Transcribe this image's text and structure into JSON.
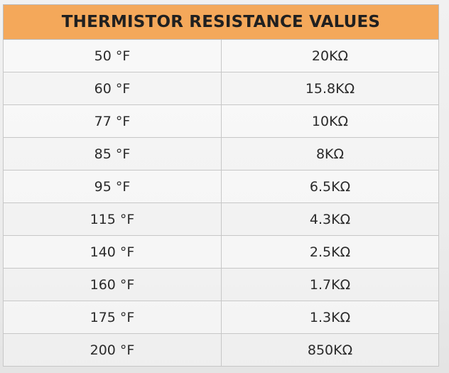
{
  "table": {
    "title": "THERMISTOR RESISTANCE VALUES",
    "rows": [
      {
        "temp": "50 °F",
        "resistance": "20KΩ"
      },
      {
        "temp": "60 °F",
        "resistance": "15.8KΩ"
      },
      {
        "temp": "77 °F",
        "resistance": "10KΩ"
      },
      {
        "temp": "85 °F",
        "resistance": "8KΩ"
      },
      {
        "temp": "95 °F",
        "resistance": "6.5KΩ"
      },
      {
        "temp": "115 °F",
        "resistance": "4.3KΩ"
      },
      {
        "temp": "140 °F",
        "resistance": "2.5KΩ"
      },
      {
        "temp": "160 °F",
        "resistance": "1.7KΩ"
      },
      {
        "temp": "175 °F",
        "resistance": "1.3KΩ"
      },
      {
        "temp": "200 °F",
        "resistance": "850KΩ"
      }
    ],
    "header_color": "#f4a85a"
  }
}
